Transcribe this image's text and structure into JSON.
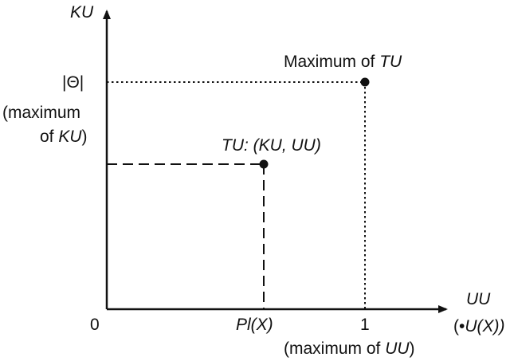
{
  "axes": {
    "y_label": "KU",
    "x_label": "UU",
    "x_label_sub_prefix": "(",
    "x_label_sub_bullet": "•",
    "x_label_sub_text": "U(X))",
    "origin_label": "0",
    "x_tick_pl": "Pl(X)",
    "x_tick_one": "1",
    "x_tick_one_note_prefix": "(maximum of ",
    "x_tick_one_note_italic": "UU",
    "x_tick_one_note_suffix": ")",
    "y_tick_theta": "|Θ|",
    "y_tick_theta_note_line1": "(maximum",
    "y_tick_theta_note_line2_prefix": "of ",
    "y_tick_theta_note_line2_italic": "KU",
    "y_tick_theta_note_line2_suffix": ")"
  },
  "points": {
    "tu": {
      "label": "TU: (KU, UU)"
    },
    "max": {
      "label_prefix": "Maximum of ",
      "label_italic": "TU"
    }
  },
  "colors": {
    "ink": "#111111",
    "background": "#ffffff"
  }
}
